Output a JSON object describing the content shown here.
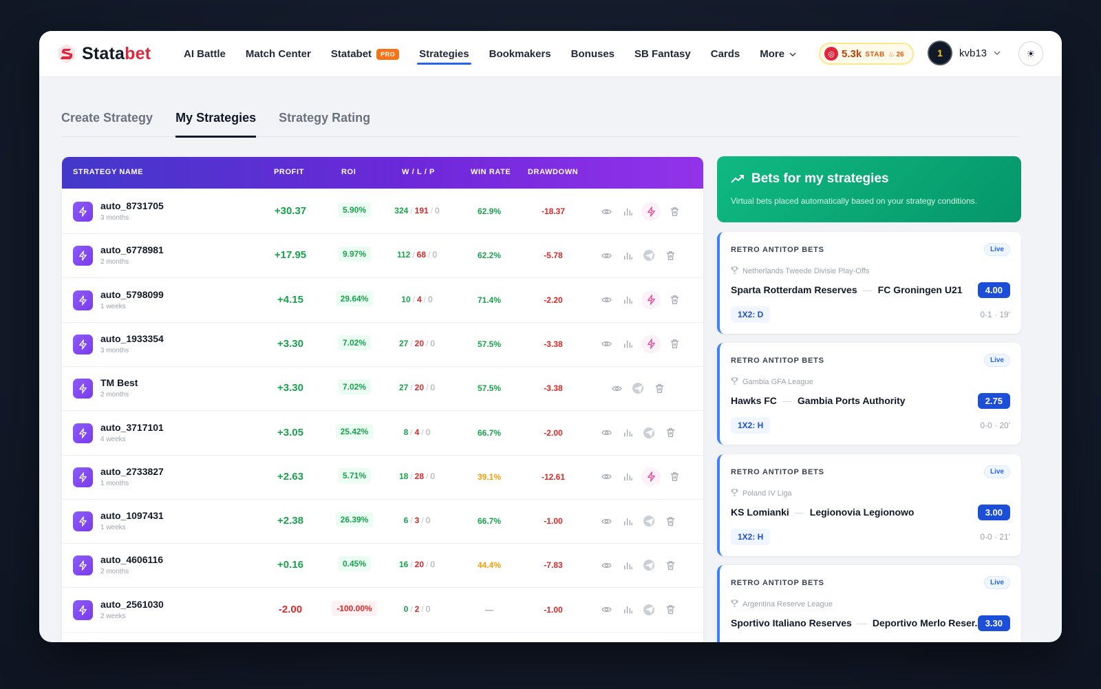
{
  "brand": {
    "name_part1": "Stata",
    "name_part2": "bet"
  },
  "nav": {
    "items": [
      {
        "label": "AI Battle"
      },
      {
        "label": "Match Center"
      },
      {
        "label": "Statabet",
        "badge": "PRO"
      },
      {
        "label": "Strategies",
        "active": true
      },
      {
        "label": "Bookmakers"
      },
      {
        "label": "Bonuses"
      },
      {
        "label": "SB Fantasy"
      },
      {
        "label": "Cards"
      },
      {
        "label": "More"
      }
    ]
  },
  "stab": {
    "value": "5.3k",
    "unit": "STAB",
    "streak": "26"
  },
  "user": {
    "name": "kvb13"
  },
  "tabs": [
    "Create Strategy",
    "My Strategies",
    "Strategy Rating"
  ],
  "table": {
    "headers": {
      "name": "STRATEGY NAME",
      "profit": "PROFIT",
      "roi": "ROI",
      "wlp": "W / L / P",
      "win_rate": "WIN RATE",
      "drawdown": "DRAWDOWN"
    },
    "rows": [
      {
        "name": "auto_8731705",
        "age": "3 months",
        "profit": "+30.37",
        "roi": "5.90%",
        "w": "324",
        "l": "191",
        "p": "0",
        "win_rate": "62.9%",
        "drawdown": "-18.37"
      },
      {
        "name": "auto_6778981",
        "age": "2 months",
        "profit": "+17.95",
        "roi": "9.97%",
        "w": "112",
        "l": "68",
        "p": "0",
        "win_rate": "62.2%",
        "drawdown": "-5.78"
      },
      {
        "name": "auto_5798099",
        "age": "1 weeks",
        "profit": "+4.15",
        "roi": "29.64%",
        "w": "10",
        "l": "4",
        "p": "0",
        "win_rate": "71.4%",
        "drawdown": "-2.20"
      },
      {
        "name": "auto_1933354",
        "age": "3 months",
        "profit": "+3.30",
        "roi": "7.02%",
        "w": "27",
        "l": "20",
        "p": "0",
        "win_rate": "57.5%",
        "drawdown": "-3.38"
      },
      {
        "name": "TM Best",
        "age": "2 months",
        "profit": "+3.30",
        "roi": "7.02%",
        "w": "27",
        "l": "20",
        "p": "0",
        "win_rate": "57.5%",
        "drawdown": "-3.38"
      },
      {
        "name": "auto_3717101",
        "age": "4 weeks",
        "profit": "+3.05",
        "roi": "25.42%",
        "w": "8",
        "l": "4",
        "p": "0",
        "win_rate": "66.7%",
        "drawdown": "-2.00"
      },
      {
        "name": "auto_2733827",
        "age": "1 months",
        "profit": "+2.63",
        "roi": "5.71%",
        "w": "18",
        "l": "28",
        "p": "0",
        "win_rate": "39.1%",
        "drawdown": "-12.61"
      },
      {
        "name": "auto_1097431",
        "age": "1 weeks",
        "profit": "+2.38",
        "roi": "26.39%",
        "w": "6",
        "l": "3",
        "p": "0",
        "win_rate": "66.7%",
        "drawdown": "-1.00"
      },
      {
        "name": "auto_4606116",
        "age": "2 months",
        "profit": "+0.16",
        "roi": "0.45%",
        "w": "16",
        "l": "20",
        "p": "0",
        "win_rate": "44.4%",
        "drawdown": "-7.83"
      },
      {
        "name": "auto_2561030",
        "age": "2 weeks",
        "profit": "-2.00",
        "roi": "-100.00%",
        "w": "0",
        "l": "2",
        "p": "0",
        "win_rate": "—",
        "drawdown": "-1.00"
      }
    ]
  },
  "banner": {
    "title": "Bets for my strategies",
    "subtitle": "Virtual bets placed automatically based on your strategy conditions."
  },
  "bets": [
    {
      "strategy": "RETRO ANTITOP BETS",
      "status": "Live",
      "league": "Netherlands Tweede Divisie Play-Offs",
      "home": "Sparta Rotterdam Reserves",
      "away": "FC Groningen U21",
      "odds": "4.00",
      "market": "1X2: D",
      "score": "0-1 · 19'"
    },
    {
      "strategy": "RETRO ANTITOP BETS",
      "status": "Live",
      "league": "Gambia GFA League",
      "home": "Hawks FC",
      "away": "Gambia Ports Authority",
      "odds": "2.75",
      "market": "1X2: H",
      "score": "0-0 · 20'"
    },
    {
      "strategy": "RETRO ANTITOP BETS",
      "status": "Live",
      "league": "Poland IV Liga",
      "home": "KS Lomianki",
      "away": "Legionovia Legionowo",
      "odds": "3.00",
      "market": "1X2: H",
      "score": "0-0 · 21'"
    },
    {
      "strategy": "RETRO ANTITOP BETS",
      "status": "Live",
      "league": "Argentina Reserve League",
      "home": "Sportivo Italiano Reserves",
      "away": "Deportivo Merlo Reser...",
      "odds": "3.30",
      "market": "",
      "score": ""
    }
  ],
  "colors": {
    "accent": "#2563eb",
    "brand": "#e0263c",
    "positive": "#16a34a",
    "negative": "#dc2626",
    "banner": "#10b981"
  }
}
